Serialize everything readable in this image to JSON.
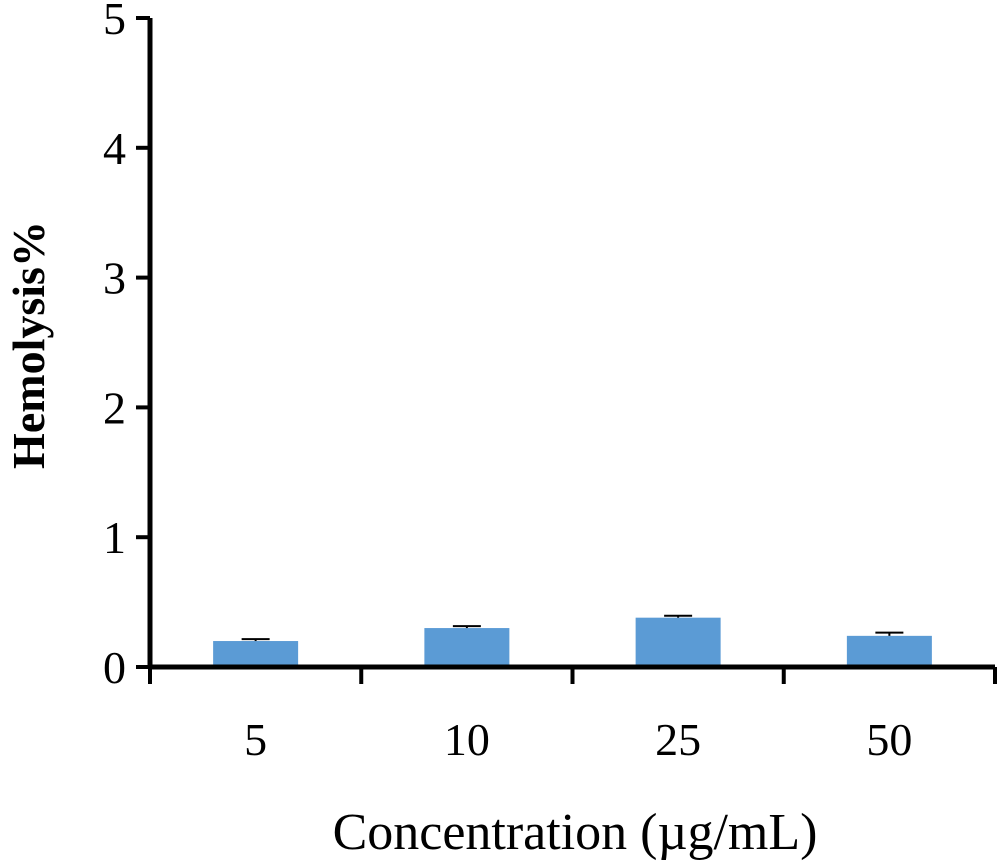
{
  "chart_data": {
    "type": "bar",
    "categories": [
      "5",
      "10",
      "25",
      "50"
    ],
    "values": [
      0.2,
      0.3,
      0.38,
      0.24
    ],
    "errors": [
      0.015,
      0.015,
      0.015,
      0.025
    ],
    "ylim": [
      0,
      5
    ],
    "yticks": [
      "0",
      "1",
      "2",
      "3",
      "4",
      "5"
    ],
    "xlabel": "Concentration (µg/mL)",
    "ylabel": "Hemolysis%",
    "grid": false,
    "bar_color": "#5b9bd5"
  }
}
